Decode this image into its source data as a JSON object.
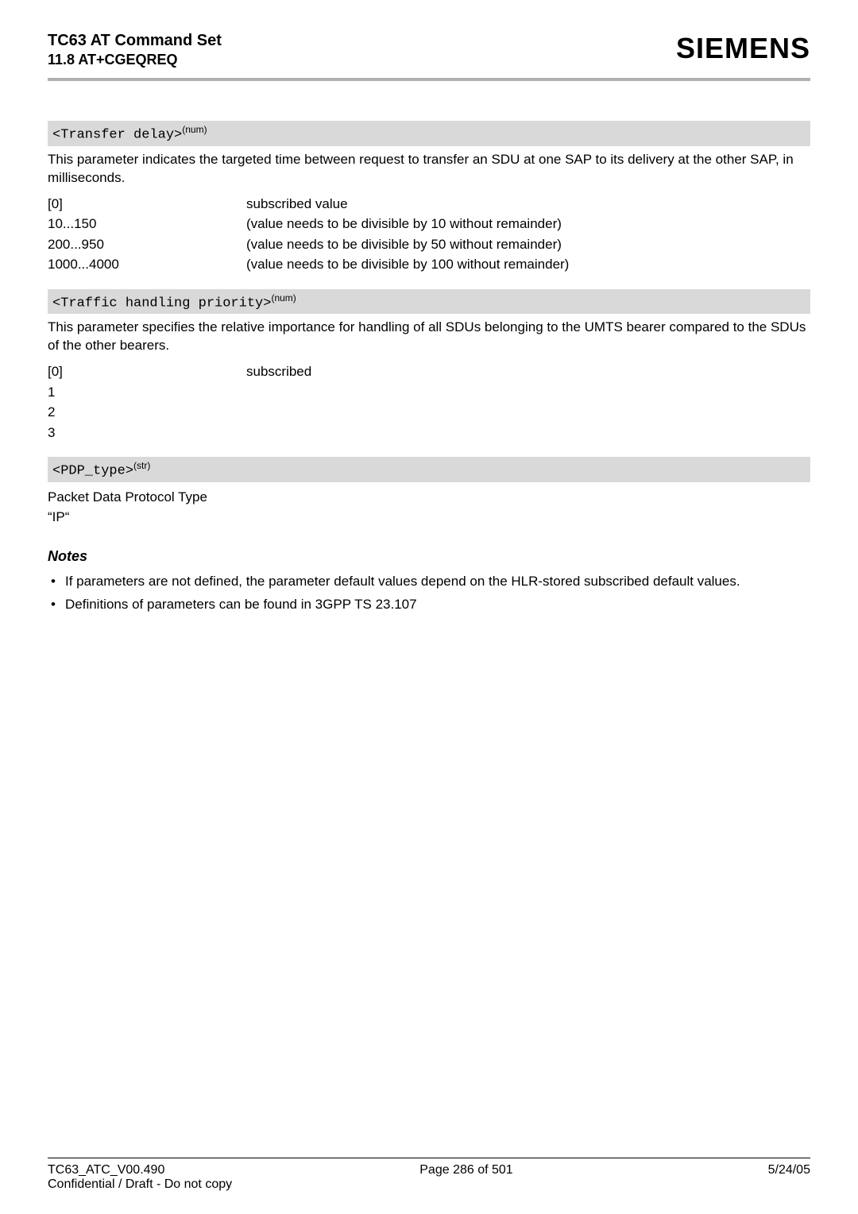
{
  "header": {
    "title_line1": "TC63 AT Command Set",
    "title_line2": "11.8 AT+CGEQREQ",
    "logo_text": "SIEMENS"
  },
  "sections": [
    {
      "param_label": "<Transfer delay>",
      "param_sup": "(num)",
      "description": "This parameter indicates the targeted time between request to transfer an SDU at one SAP to its delivery at the other SAP, in milliseconds.",
      "rows": [
        {
          "key": "[0]",
          "desc": "subscribed value"
        },
        {
          "key": "10...150",
          "desc": "(value needs to be divisible by 10 without remainder)"
        },
        {
          "key": "200...950",
          "desc": "(value needs to be divisible by 50 without remainder)"
        },
        {
          "key": "1000...4000",
          "desc": "(value needs to be divisible by 100 without remainder)"
        }
      ]
    },
    {
      "param_label": "<Traffic handling priority>",
      "param_sup": "(num)",
      "description": "This parameter specifies the relative importance for handling of all SDUs belonging to the UMTS bearer compared to the SDUs of the other bearers.",
      "rows": [
        {
          "key": "[0]",
          "desc": "subscribed"
        },
        {
          "key": "1",
          "desc": ""
        },
        {
          "key": "2",
          "desc": ""
        },
        {
          "key": "3",
          "desc": ""
        }
      ]
    },
    {
      "param_label": "<PDP_type>",
      "param_sup": "(str)",
      "description": "",
      "rows": [
        {
          "key": "Packet Data Protocol Type",
          "desc": ""
        },
        {
          "key": "“IP“",
          "desc": ""
        }
      ]
    }
  ],
  "notes_heading": "Notes",
  "notes": [
    "If parameters are not defined, the parameter default values depend on the HLR-stored subscribed default values.",
    "Definitions of parameters can be found in 3GPP TS 23.107"
  ],
  "footer": {
    "left_line1": "TC63_ATC_V00.490",
    "left_line2": "Confidential / Draft - Do not copy",
    "center": "Page 286 of 501",
    "right": "5/24/05"
  },
  "colors": {
    "param_bg": "#d9d9d9",
    "hr": "#b0b0b0",
    "text": "#000000",
    "background": "#ffffff"
  },
  "typography": {
    "body_fontsize": 17,
    "header_fontsize": 20,
    "logo_fontsize": 36,
    "footer_fontsize": 16
  }
}
